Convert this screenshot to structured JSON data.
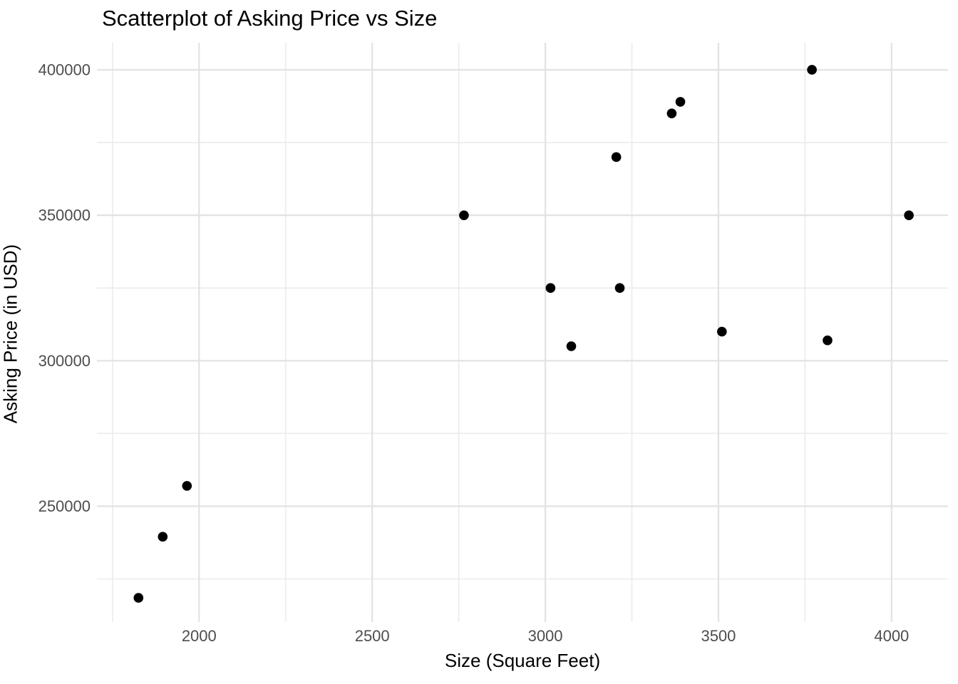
{
  "chart_data": {
    "type": "scatter",
    "title": "Scatterplot of Asking Price vs Size",
    "xlabel": "Size (Square Feet)",
    "ylabel": "Asking Price (in USD)",
    "xlim": [
      1705,
      4163
    ],
    "ylim": [
      210200,
      409300
    ],
    "x_major_ticks": [
      2000,
      2500,
      3000,
      3500,
      4000
    ],
    "x_minor_ticks": [
      1750,
      2250,
      2750,
      3250,
      3750
    ],
    "y_major_ticks": [
      250000,
      300000,
      350000,
      400000
    ],
    "y_minor_ticks": [
      225000,
      275000,
      325000,
      375000
    ],
    "points": [
      {
        "size": 1825,
        "price": 218500
      },
      {
        "size": 1895,
        "price": 239500
      },
      {
        "size": 1965,
        "price": 257000
      },
      {
        "size": 2765,
        "price": 350000
      },
      {
        "size": 3015,
        "price": 325000
      },
      {
        "size": 3075,
        "price": 305000
      },
      {
        "size": 3205,
        "price": 370000
      },
      {
        "size": 3215,
        "price": 325000
      },
      {
        "size": 3365,
        "price": 385000
      },
      {
        "size": 3390,
        "price": 389000
      },
      {
        "size": 3510,
        "price": 310000
      },
      {
        "size": 3770,
        "price": 400000
      },
      {
        "size": 3815,
        "price": 307000
      },
      {
        "size": 4050,
        "price": 350000
      }
    ],
    "legend": null,
    "grid": true,
    "colors": {
      "point": "#000000",
      "grid_major": "#e2e2e2",
      "grid_minor": "#ececec",
      "tick_label": "#4d4d4d",
      "title_text": "#000000",
      "background": "#ffffff"
    }
  }
}
